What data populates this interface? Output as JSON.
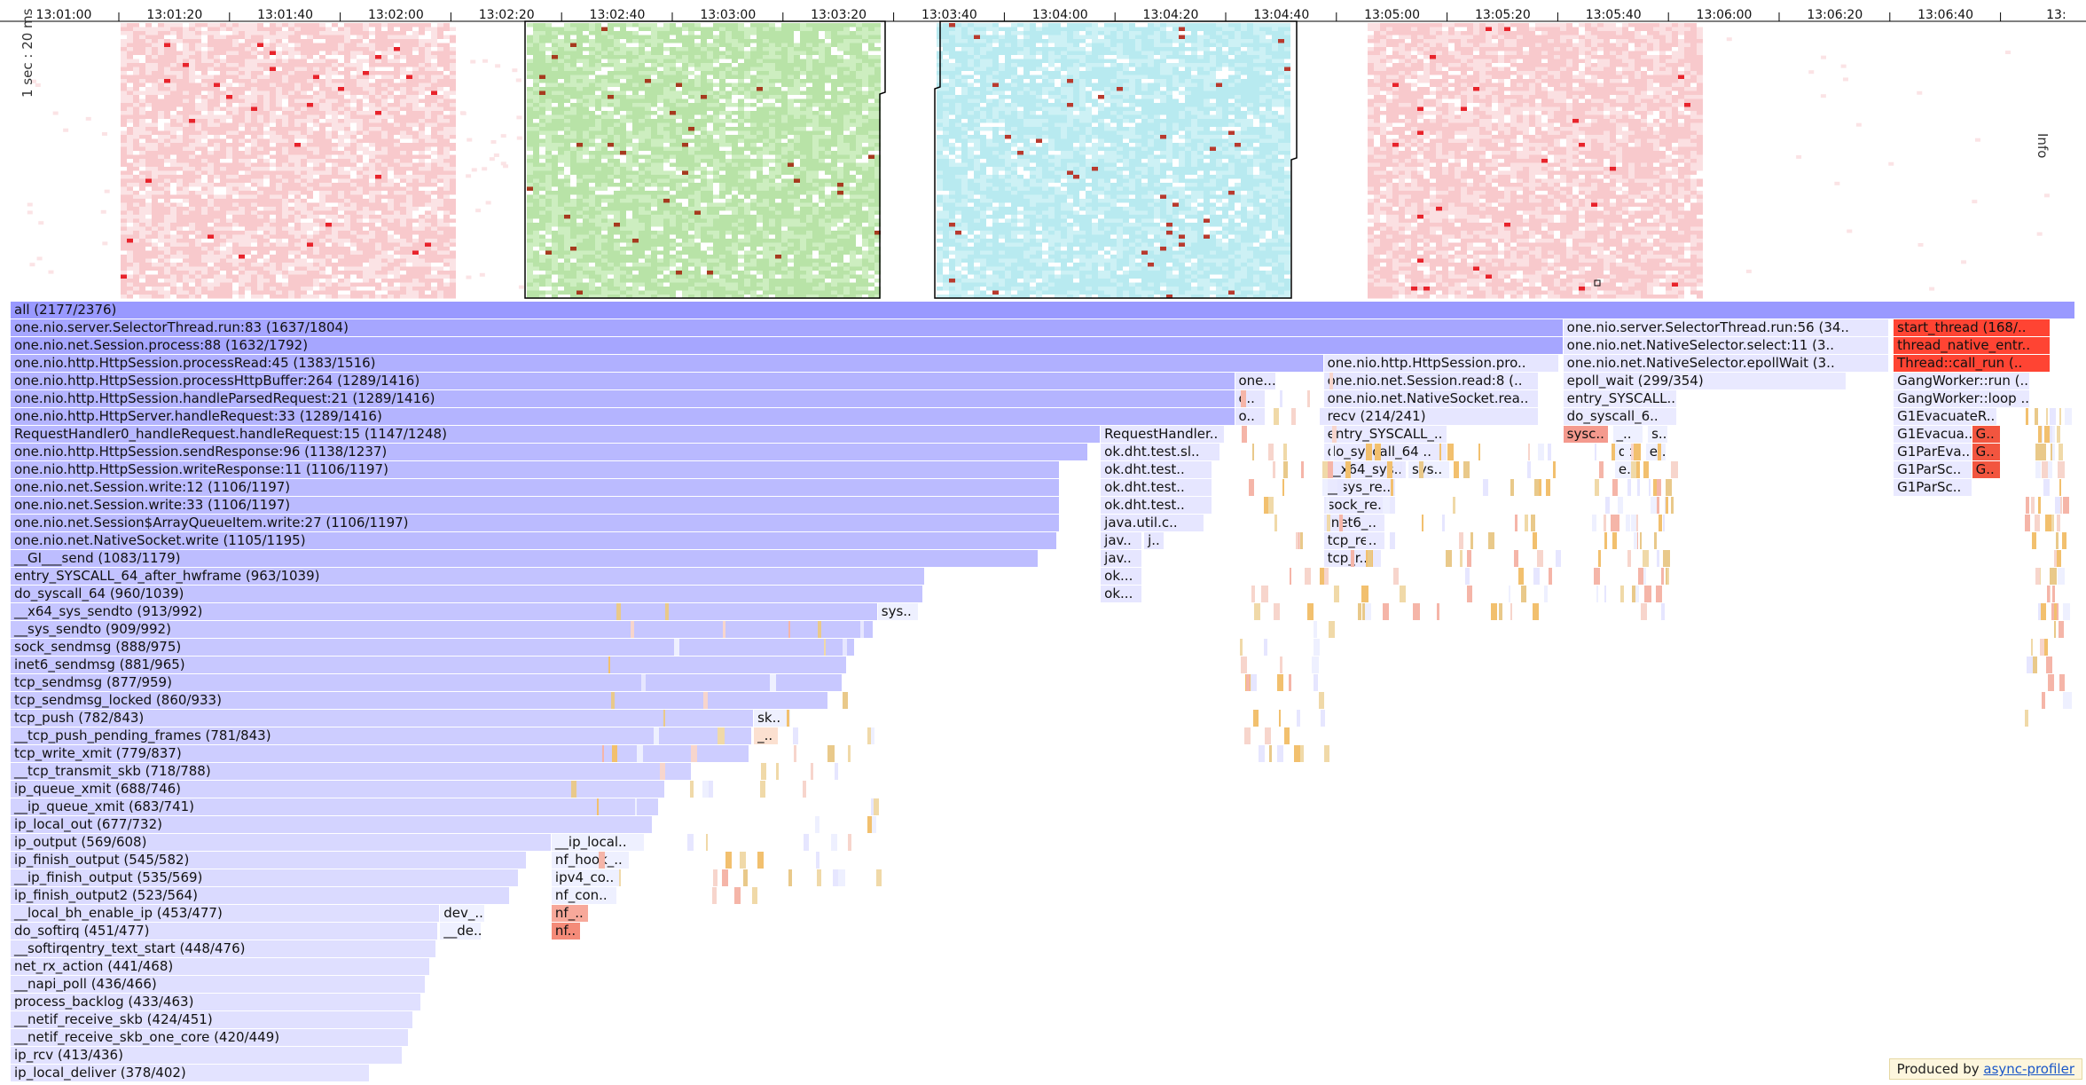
{
  "timeline": {
    "ticks": [
      "13:01:00",
      "13:01:20",
      "13:01:40",
      "13:02:00",
      "13:02:20",
      "13:02:40",
      "13:03:00",
      "13:03:20",
      "13:03:40",
      "13:04:00",
      "13:04:20",
      "13:04:40",
      "13:05:00",
      "13:05:20",
      "13:05:40",
      "13:06:00",
      "13:06:20",
      "13:06:40",
      "13:"
    ],
    "y_label": "1 sec : 20 ms",
    "right_label": "Info",
    "colors": {
      "red": "#f8c9cc",
      "green": "#b8e3a7",
      "cyan": "#b8eaf0"
    }
  },
  "flame_frames": [
    {
      "label": "all (2177/2376)",
      "depth": 0,
      "start": 0.0,
      "width": 1.0,
      "color": "#9999ff"
    },
    {
      "label": "one.nio.server.SelectorThread.run:83 (1637/1804)",
      "depth": 1,
      "start": 0.0,
      "width": 0.752,
      "color": "#a6a6ff"
    },
    {
      "label": "one.nio.server.SelectorThread.run:56 (34..",
      "depth": 1,
      "start": 0.752,
      "width": 0.158,
      "color": "#e6e6ff"
    },
    {
      "label": "start_thread (168/..",
      "depth": 1,
      "start": 0.912,
      "width": 0.076,
      "color": "#ff4433"
    },
    {
      "label": "one.nio.net.Session.process:88 (1632/1792)",
      "depth": 2,
      "start": 0.0,
      "width": 0.752,
      "color": "#a6a6ff"
    },
    {
      "label": "one.nio.net.NativeSelector.select:11 (3..",
      "depth": 2,
      "start": 0.752,
      "width": 0.158,
      "color": "#e6e6ff"
    },
    {
      "label": "thread_native_entr..",
      "depth": 2,
      "start": 0.912,
      "width": 0.076,
      "color": "#ff4433"
    },
    {
      "label": "one.nio.http.HttpSession.processRead:45 (1383/1516)",
      "depth": 3,
      "start": 0.0,
      "width": 0.636,
      "color": "#b0b0ff"
    },
    {
      "label": "one.nio.http.HttpSession.pro..",
      "depth": 3,
      "start": 0.636,
      "width": 0.114,
      "color": "#e6e6ff"
    },
    {
      "label": "one.nio.net.NativeSelector.epollWait (3..",
      "depth": 3,
      "start": 0.752,
      "width": 0.158,
      "color": "#e6e6ff"
    },
    {
      "label": "Thread::call_run (..",
      "depth": 3,
      "start": 0.912,
      "width": 0.076,
      "color": "#ff4433"
    },
    {
      "label": "one.nio.http.HttpSession.processHttpBuffer:264 (1289/1416)",
      "depth": 4,
      "start": 0.0,
      "width": 0.593,
      "color": "#b4b4ff"
    },
    {
      "label": "one...",
      "depth": 4,
      "start": 0.593,
      "width": 0.02,
      "color": "#e6e6ff"
    },
    {
      "label": "one.nio.net.Session.read:8 (..",
      "depth": 4,
      "start": 0.636,
      "width": 0.104,
      "color": "#e6e6ff"
    },
    {
      "label": "epoll_wait (299/354)",
      "depth": 4,
      "start": 0.752,
      "width": 0.137,
      "color": "#e9e9ff"
    },
    {
      "label": "GangWorker::run (..",
      "depth": 4,
      "start": 0.912,
      "width": 0.066,
      "color": "#e9e9ff"
    },
    {
      "label": "one.nio.http.HttpSession.handleParsedRequest:21 (1289/1416)",
      "depth": 5,
      "start": 0.0,
      "width": 0.593,
      "color": "#b4b4ff"
    },
    {
      "label": "o..",
      "depth": 5,
      "start": 0.593,
      "width": 0.015,
      "color": "#e6e6ff"
    },
    {
      "label": "one.nio.net.NativeSocket.rea..",
      "depth": 5,
      "start": 0.636,
      "width": 0.104,
      "color": "#e6e6ff"
    },
    {
      "label": "entry_SYSCALL..",
      "depth": 5,
      "start": 0.752,
      "width": 0.055,
      "color": "#eaeaff"
    },
    {
      "label": "GangWorker::loop ..",
      "depth": 5,
      "start": 0.912,
      "width": 0.066,
      "color": "#e9e9ff"
    },
    {
      "label": "one.nio.http.HttpServer.handleRequest:33 (1289/1416)",
      "depth": 6,
      "start": 0.0,
      "width": 0.593,
      "color": "#b4b4ff"
    },
    {
      "label": "o..",
      "depth": 6,
      "start": 0.593,
      "width": 0.015,
      "color": "#e6e6ff"
    },
    {
      "label": "recv (214/241)",
      "depth": 6,
      "start": 0.636,
      "width": 0.104,
      "color": "#e6e6ff"
    },
    {
      "label": "do_syscall_6..",
      "depth": 6,
      "start": 0.752,
      "width": 0.055,
      "color": "#eaeaff"
    },
    {
      "label": "G1EvacuateR..",
      "depth": 6,
      "start": 0.912,
      "width": 0.05,
      "color": "#e9e9ff"
    },
    {
      "label": "RequestHandler0_handleRequest.handleRequest:15 (1147/1248)",
      "depth": 7,
      "start": 0.0,
      "width": 0.528,
      "color": "#b8b8ff"
    },
    {
      "label": "RequestHandler..",
      "depth": 7,
      "start": 0.528,
      "width": 0.06,
      "color": "#e6e6ff"
    },
    {
      "label": "entry_SYSCALL_..",
      "depth": 7,
      "start": 0.636,
      "width": 0.06,
      "color": "#e9e9ff"
    },
    {
      "label": "sysc..",
      "depth": 7,
      "start": 0.752,
      "width": 0.022,
      "color": "#f49a8e"
    },
    {
      "label": "_..",
      "depth": 7,
      "start": 0.776,
      "width": 0.015,
      "color": "#eef0ff"
    },
    {
      "label": "s..",
      "depth": 7,
      "start": 0.793,
      "width": 0.01,
      "color": "#eef0ff"
    },
    {
      "label": "G1Evacua..",
      "depth": 7,
      "start": 0.912,
      "width": 0.038,
      "color": "#e9e9ff"
    },
    {
      "label": "G..",
      "depth": 7,
      "start": 0.95,
      "width": 0.014,
      "color": "#f2553f"
    },
    {
      "label": "one.nio.http.HttpSession.sendResponse:96 (1138/1237)",
      "depth": 8,
      "start": 0.0,
      "width": 0.522,
      "color": "#b9b9ff"
    },
    {
      "label": "ok.dht.test.sl..",
      "depth": 8,
      "start": 0.528,
      "width": 0.058,
      "color": "#e6e6ff"
    },
    {
      "label": "do_syscall_64 ..",
      "depth": 8,
      "start": 0.636,
      "width": 0.06,
      "color": "#e9e9ff"
    },
    {
      "label": "do..",
      "depth": 8,
      "start": 0.777,
      "width": 0.012,
      "color": "#eef0ff"
    },
    {
      "label": "e..",
      "depth": 8,
      "start": 0.792,
      "width": 0.01,
      "color": "#eef0ff"
    },
    {
      "label": "G1ParEva..",
      "depth": 8,
      "start": 0.912,
      "width": 0.038,
      "color": "#e9e9ff"
    },
    {
      "label": "G..",
      "depth": 8,
      "start": 0.95,
      "width": 0.014,
      "color": "#f2553f"
    },
    {
      "label": "one.nio.http.HttpSession.writeResponse:11 (1106/1197)",
      "depth": 9,
      "start": 0.0,
      "width": 0.508,
      "color": "#bbbbff"
    },
    {
      "label": "ok.dht.test..",
      "depth": 9,
      "start": 0.528,
      "width": 0.054,
      "color": "#e6e6ff"
    },
    {
      "label": "__x64_sys..",
      "depth": 9,
      "start": 0.636,
      "width": 0.04,
      "color": "#e9e9ff"
    },
    {
      "label": "sys..",
      "depth": 9,
      "start": 0.677,
      "width": 0.02,
      "color": "#eef0ff"
    },
    {
      "label": "e..",
      "depth": 9,
      "start": 0.777,
      "width": 0.012,
      "color": "#eef0ff"
    },
    {
      "label": "G1ParSc..",
      "depth": 9,
      "start": 0.912,
      "width": 0.038,
      "color": "#e9e9ff"
    },
    {
      "label": "G..",
      "depth": 9,
      "start": 0.95,
      "width": 0.014,
      "color": "#f2553f"
    },
    {
      "label": "one.nio.net.Session.write:12 (1106/1197)",
      "depth": 10,
      "start": 0.0,
      "width": 0.508,
      "color": "#bbbbff"
    },
    {
      "label": "ok.dht.test..",
      "depth": 10,
      "start": 0.528,
      "width": 0.054,
      "color": "#e6e6ff"
    },
    {
      "label": "__sys_re..",
      "depth": 10,
      "start": 0.636,
      "width": 0.035,
      "color": "#e9e9ff"
    },
    {
      "label": "G1ParSc..",
      "depth": 10,
      "start": 0.912,
      "width": 0.038,
      "color": "#e9e9ff"
    },
    {
      "label": "one.nio.net.Session.write:33 (1106/1197)",
      "depth": 11,
      "start": 0.0,
      "width": 0.508,
      "color": "#bbbbff"
    },
    {
      "label": "ok.dht.test..",
      "depth": 11,
      "start": 0.528,
      "width": 0.054,
      "color": "#e6e6ff"
    },
    {
      "label": "sock_re..",
      "depth": 11,
      "start": 0.636,
      "width": 0.035,
      "color": "#e9e9ff"
    },
    {
      "label": "one.nio.net.Session$ArrayQueueItem.write:27 (1106/1197)",
      "depth": 12,
      "start": 0.0,
      "width": 0.508,
      "color": "#bbbbff"
    },
    {
      "label": "java.util.c..",
      "depth": 12,
      "start": 0.528,
      "width": 0.05,
      "color": "#e6e6ff"
    },
    {
      "label": "inet6_..",
      "depth": 12,
      "start": 0.636,
      "width": 0.03,
      "color": "#e9e9ff"
    },
    {
      "label": "one.nio.net.NativeSocket.write (1105/1195)",
      "depth": 13,
      "start": 0.0,
      "width": 0.507,
      "color": "#bbbbff"
    },
    {
      "label": "jav..",
      "depth": 13,
      "start": 0.528,
      "width": 0.02,
      "color": "#e6e6ff"
    },
    {
      "label": "j..",
      "depth": 13,
      "start": 0.549,
      "width": 0.01,
      "color": "#e6e6ff"
    },
    {
      "label": "tcp_re..",
      "depth": 13,
      "start": 0.636,
      "width": 0.03,
      "color": "#e9e9ff"
    },
    {
      "label": "__GI___send (1083/1179)",
      "depth": 14,
      "start": 0.0,
      "width": 0.498,
      "color": "#bdbdff"
    },
    {
      "label": "jav..",
      "depth": 14,
      "start": 0.528,
      "width": 0.02,
      "color": "#e6e6ff"
    },
    {
      "label": "tcp_r..",
      "depth": 14,
      "start": 0.636,
      "width": 0.028,
      "color": "#e9e9ff"
    },
    {
      "label": "entry_SYSCALL_64_after_hwframe (963/1039)",
      "depth": 15,
      "start": 0.0,
      "width": 0.443,
      "color": "#c3c3ff"
    },
    {
      "label": "ok...",
      "depth": 15,
      "start": 0.528,
      "width": 0.02,
      "color": "#e6e6ff"
    },
    {
      "label": "do_syscall_64 (960/1039)",
      "depth": 16,
      "start": 0.0,
      "width": 0.442,
      "color": "#c3c3ff"
    },
    {
      "label": "ok...",
      "depth": 16,
      "start": 0.528,
      "width": 0.02,
      "color": "#e6e6ff"
    },
    {
      "label": "__x64_sys_sendto (913/992)",
      "depth": 17,
      "start": 0.0,
      "width": 0.42,
      "color": "#c5c5ff"
    },
    {
      "label": "sys..",
      "depth": 17,
      "start": 0.42,
      "width": 0.02,
      "color": "#eef0ff"
    },
    {
      "label": "__sys_sendto (909/992)",
      "depth": 18,
      "start": 0.0,
      "width": 0.418,
      "color": "#c6c6ff"
    },
    {
      "label": "sock_sendmsg (888/975)",
      "depth": 19,
      "start": 0.0,
      "width": 0.409,
      "color": "#c7c7ff"
    },
    {
      "label": "inet6_sendmsg (881/965)",
      "depth": 20,
      "start": 0.0,
      "width": 0.405,
      "color": "#c8c8ff"
    },
    {
      "label": "tcp_sendmsg (877/959)",
      "depth": 21,
      "start": 0.0,
      "width": 0.403,
      "color": "#c8c8ff"
    },
    {
      "label": "tcp_sendmsg_locked (860/933)",
      "depth": 22,
      "start": 0.0,
      "width": 0.396,
      "color": "#c9c9ff"
    },
    {
      "label": "tcp_push (782/843)",
      "depth": 23,
      "start": 0.0,
      "width": 0.36,
      "color": "#cdcdff"
    },
    {
      "label": "sk..",
      "depth": 23,
      "start": 0.36,
      "width": 0.018,
      "color": "#eef0ff"
    },
    {
      "label": "__tcp_push_pending_frames (781/843)",
      "depth": 24,
      "start": 0.0,
      "width": 0.359,
      "color": "#cdcdff"
    },
    {
      "label": "_..",
      "depth": 24,
      "start": 0.36,
      "width": 0.012,
      "color": "#fbe0d0"
    },
    {
      "label": "tcp_write_xmit (779/837)",
      "depth": 25,
      "start": 0.0,
      "width": 0.358,
      "color": "#cdcdff"
    },
    {
      "label": "__tcp_transmit_skb (718/788)",
      "depth": 26,
      "start": 0.0,
      "width": 0.33,
      "color": "#d0d0ff"
    },
    {
      "label": "ip_queue_xmit (688/746)",
      "depth": 27,
      "start": 0.0,
      "width": 0.317,
      "color": "#d2d2ff"
    },
    {
      "label": "__ip_queue_xmit (683/741)",
      "depth": 28,
      "start": 0.0,
      "width": 0.314,
      "color": "#d2d2ff"
    },
    {
      "label": "ip_local_out (677/732)",
      "depth": 29,
      "start": 0.0,
      "width": 0.311,
      "color": "#d3d3ff"
    },
    {
      "label": "ip_output (569/608)",
      "depth": 30,
      "start": 0.0,
      "width": 0.262,
      "color": "#d8d8ff"
    },
    {
      "label": "__ip_local..",
      "depth": 30,
      "start": 0.262,
      "width": 0.045,
      "color": "#eef0ff"
    },
    {
      "label": "ip_finish_output (545/582)",
      "depth": 31,
      "start": 0.0,
      "width": 0.25,
      "color": "#d9d9ff"
    },
    {
      "label": "nf_hook_..",
      "depth": 31,
      "start": 0.262,
      "width": 0.038,
      "color": "#eef0ff"
    },
    {
      "label": "__ip_finish_output (535/569)",
      "depth": 32,
      "start": 0.0,
      "width": 0.246,
      "color": "#dadaff"
    },
    {
      "label": "ipv4_co..",
      "depth": 32,
      "start": 0.262,
      "width": 0.034,
      "color": "#eef0ff"
    },
    {
      "label": "ip_finish_output2 (523/564)",
      "depth": 33,
      "start": 0.0,
      "width": 0.242,
      "color": "#dadaff"
    },
    {
      "label": "nf_con..",
      "depth": 33,
      "start": 0.262,
      "width": 0.032,
      "color": "#eef0ff"
    },
    {
      "label": "__local_bh_enable_ip (453/477)",
      "depth": 34,
      "start": 0.0,
      "width": 0.208,
      "color": "#dedeff"
    },
    {
      "label": "dev_..",
      "depth": 34,
      "start": 0.208,
      "width": 0.022,
      "color": "#eef0ff"
    },
    {
      "label": "nf_..",
      "depth": 34,
      "start": 0.262,
      "width": 0.018,
      "color": "#f7a89a"
    },
    {
      "label": "do_softirq (451/477)",
      "depth": 35,
      "start": 0.0,
      "width": 0.207,
      "color": "#dedeff"
    },
    {
      "label": "__de..",
      "depth": 35,
      "start": 0.208,
      "width": 0.02,
      "color": "#eef0ff"
    },
    {
      "label": "nf..",
      "depth": 35,
      "start": 0.262,
      "width": 0.014,
      "color": "#f48b79"
    },
    {
      "label": "__softirqentry_text_start (448/476)",
      "depth": 36,
      "start": 0.0,
      "width": 0.206,
      "color": "#dfdfff"
    },
    {
      "label": "net_rx_action (441/468)",
      "depth": 37,
      "start": 0.0,
      "width": 0.203,
      "color": "#dfdfff"
    },
    {
      "label": "__napi_poll (436/466)",
      "depth": 38,
      "start": 0.0,
      "width": 0.201,
      "color": "#dfdfff"
    },
    {
      "label": "process_backlog (433/463)",
      "depth": 39,
      "start": 0.0,
      "width": 0.199,
      "color": "#e0e0ff"
    },
    {
      "label": "__netif_receive_skb (424/451)",
      "depth": 40,
      "start": 0.0,
      "width": 0.195,
      "color": "#e0e0ff"
    },
    {
      "label": "__netif_receive_skb_one_core (420/449)",
      "depth": 41,
      "start": 0.0,
      "width": 0.193,
      "color": "#e0e0ff"
    },
    {
      "label": "ip_rcv (413/436)",
      "depth": 42,
      "start": 0.0,
      "width": 0.19,
      "color": "#e1e1ff"
    },
    {
      "label": "ip_local_deliver (378/402)",
      "depth": 43,
      "start": 0.0,
      "width": 0.174,
      "color": "#e3e3ff"
    }
  ],
  "footer": {
    "prefix": "Produced by ",
    "link": "async-profiler"
  }
}
